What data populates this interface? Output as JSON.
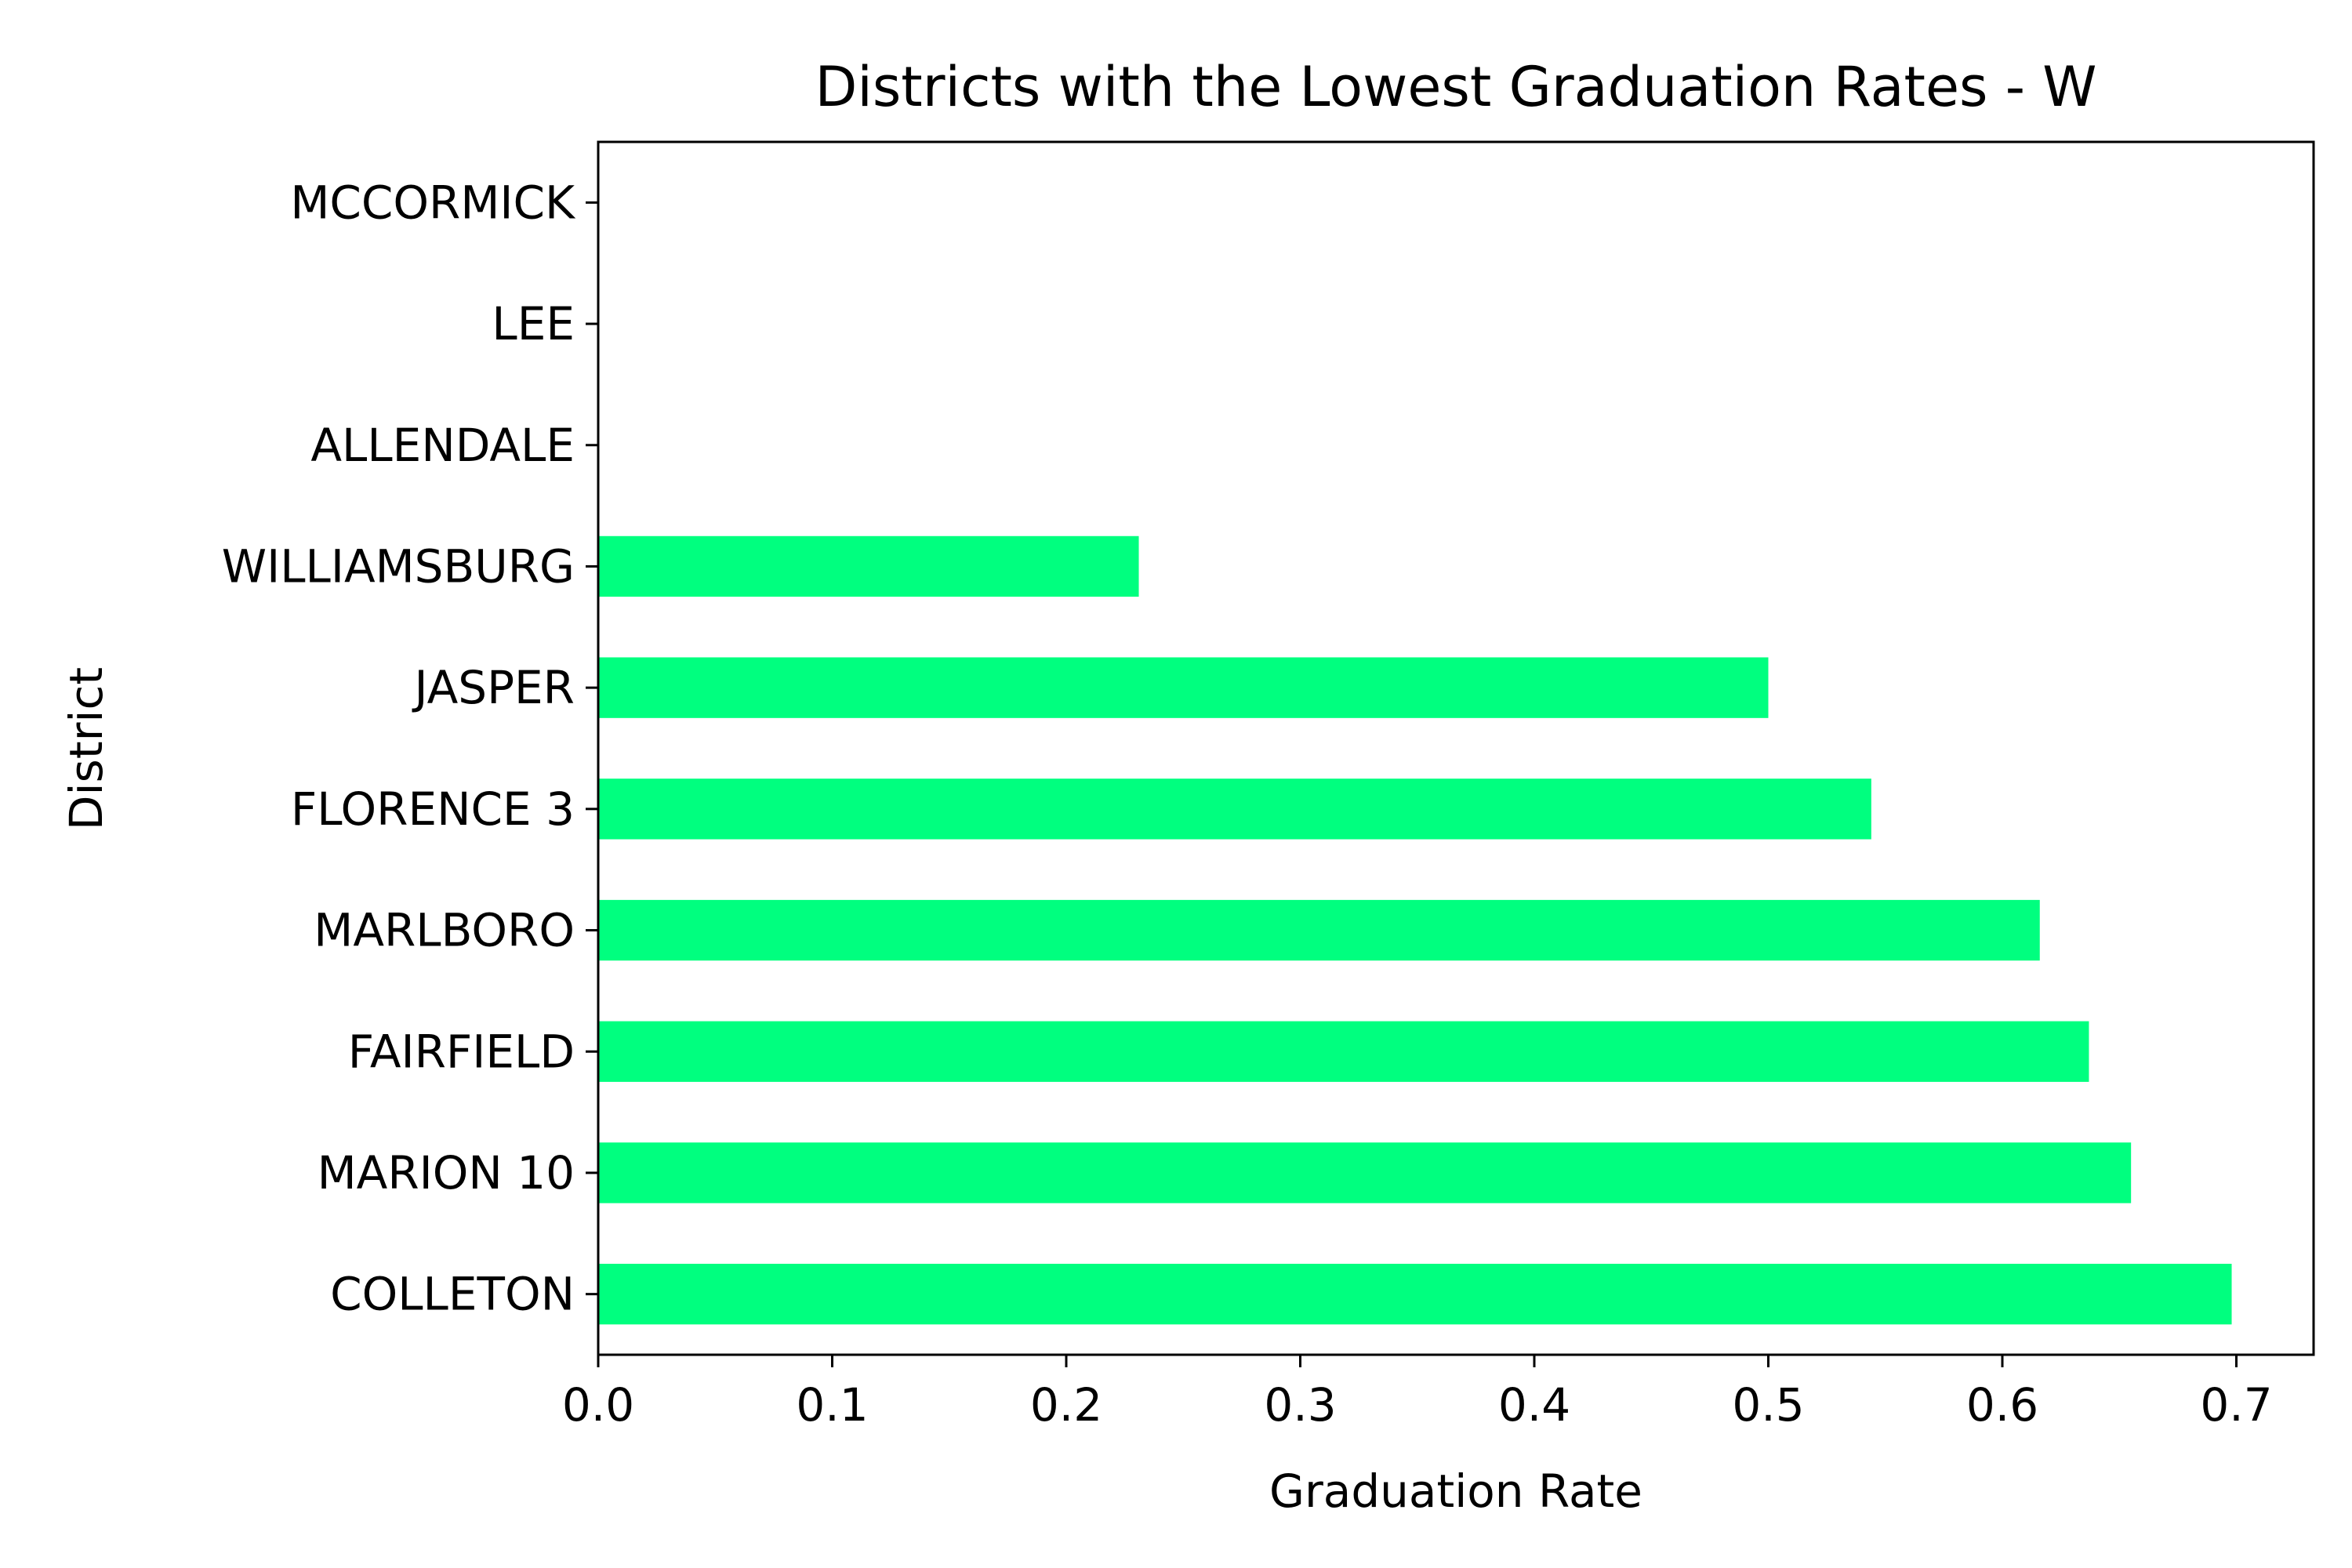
{
  "chart_data": {
    "type": "bar",
    "orientation": "horizontal",
    "title": "Districts with the Lowest Graduation Rates - W",
    "xlabel": "Graduation Rate",
    "ylabel": "District",
    "categories": [
      "COLLETON",
      "MARION 10",
      "FAIRFIELD",
      "MARLBORO",
      "FLORENCE 3",
      "JASPER",
      "WILLIAMSBURG",
      "ALLENDALE",
      "LEE",
      "MCCORMICK"
    ],
    "values": [
      0.698,
      0.655,
      0.637,
      0.616,
      0.544,
      0.5,
      0.231,
      0.0,
      0.0,
      0.0
    ],
    "xticks": [
      "0.0",
      "0.1",
      "0.2",
      "0.3",
      "0.4",
      "0.5",
      "0.6",
      "0.7"
    ],
    "xlim": [
      0,
      0.733
    ],
    "bar_color": "#00ff7f",
    "grid": false,
    "legend": "none"
  }
}
